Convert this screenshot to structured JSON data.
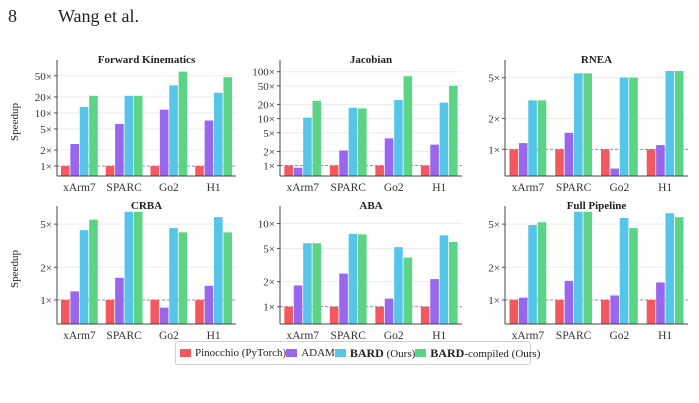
{
  "header": {
    "page_number": "8",
    "running_head": "Wang et al."
  },
  "colors": {
    "pinocchio": "#f2595f",
    "adam": "#9966ee",
    "bard": "#55c5e8",
    "bard_compiled": "#5bd585"
  },
  "legend": [
    {
      "key": "pinocchio",
      "bold": "",
      "label": "Pinocchio (PyTorch)"
    },
    {
      "key": "adam",
      "bold": "",
      "label": "ADAM"
    },
    {
      "key": "bard",
      "bold": "BARD",
      "label": " (Ours)"
    },
    {
      "key": "bard_compiled",
      "bold": "BARD",
      "label": "-compiled (Ours)"
    }
  ],
  "ylabel": "Speedup",
  "chart_data": [
    {
      "type": "bar",
      "title": "Forward Kinematics",
      "ylabel": "Speedup",
      "yscale": "log",
      "ylim": [
        0.65,
        70
      ],
      "ytick_values": [
        1,
        2,
        5,
        10,
        20,
        50
      ],
      "ytick_labels": [
        "1×",
        "2×",
        "5×",
        "10×",
        "20×",
        "50×"
      ],
      "reference_line": 1,
      "grid": true,
      "categories": [
        "xArm7",
        "SPARC",
        "Go2",
        "H1"
      ],
      "series": [
        {
          "name": "Pinocchio (PyTorch)",
          "color_key": "pinocchio",
          "values": [
            1.0,
            1.0,
            1.0,
            1.0
          ]
        },
        {
          "name": "ADAM",
          "color_key": "adam",
          "values": [
            2.6,
            6.2,
            11.5,
            7.2
          ]
        },
        {
          "name": "BARD (Ours)",
          "color_key": "bard",
          "values": [
            13,
            21,
            33,
            24
          ]
        },
        {
          "name": "BARD-compiled (Ours)",
          "color_key": "bard_compiled",
          "values": [
            21,
            21,
            60,
            47
          ]
        }
      ]
    },
    {
      "type": "bar",
      "title": "Jacobian",
      "ylabel": "",
      "yscale": "log",
      "ylim": [
        0.6,
        120
      ],
      "ytick_values": [
        1,
        2,
        5,
        10,
        20,
        50,
        100
      ],
      "ytick_labels": [
        "1×",
        "2×",
        "5×",
        "10×",
        "20×",
        "50×",
        "100×"
      ],
      "reference_line": 1,
      "grid": true,
      "categories": [
        "xArm7",
        "SPARC",
        "Go2",
        "H1"
      ],
      "series": [
        {
          "name": "Pinocchio (PyTorch)",
          "color_key": "pinocchio",
          "values": [
            1.0,
            1.0,
            1.0,
            1.0
          ]
        },
        {
          "name": "ADAM",
          "color_key": "adam",
          "values": [
            0.9,
            2.1,
            3.8,
            2.8
          ]
        },
        {
          "name": "BARD (Ours)",
          "color_key": "bard",
          "values": [
            10.5,
            17,
            25,
            22
          ]
        },
        {
          "name": "BARD-compiled (Ours)",
          "color_key": "bard_compiled",
          "values": [
            24,
            16.5,
            80,
            50
          ]
        }
      ]
    },
    {
      "type": "bar",
      "title": "RNEA",
      "ylabel": "",
      "yscale": "log",
      "ylim": [
        0.55,
        6.2
      ],
      "ytick_values": [
        1,
        2,
        5
      ],
      "ytick_labels": [
        "1×",
        "2×",
        "5×"
      ],
      "reference_line": 1,
      "grid": true,
      "categories": [
        "xArm7",
        "SPARC",
        "Go2",
        "H1"
      ],
      "series": [
        {
          "name": "Pinocchio (PyTorch)",
          "color_key": "pinocchio",
          "values": [
            1.0,
            1.0,
            1.0,
            1.0
          ]
        },
        {
          "name": "ADAM",
          "color_key": "adam",
          "values": [
            1.15,
            1.45,
            0.65,
            1.1
          ]
        },
        {
          "name": "BARD (Ours)",
          "color_key": "bard",
          "values": [
            3.0,
            5.5,
            5.0,
            5.8
          ]
        },
        {
          "name": "BARD-compiled (Ours)",
          "color_key": "bard_compiled",
          "values": [
            3.0,
            5.5,
            5.0,
            5.8
          ]
        }
      ]
    },
    {
      "type": "bar",
      "title": "CRBA",
      "ylabel": "Speedup",
      "yscale": "log",
      "ylim": [
        0.6,
        6.2
      ],
      "ytick_values": [
        1,
        2,
        5
      ],
      "ytick_labels": [
        "1×",
        "2×",
        "5×"
      ],
      "reference_line": 1,
      "grid": true,
      "categories": [
        "xArm7",
        "SPARC",
        "Go2",
        "H1"
      ],
      "series": [
        {
          "name": "Pinocchio (PyTorch)",
          "color_key": "pinocchio",
          "values": [
            1.0,
            1.0,
            1.0,
            1.0
          ]
        },
        {
          "name": "ADAM",
          "color_key": "adam",
          "values": [
            1.2,
            1.6,
            0.85,
            1.35
          ]
        },
        {
          "name": "BARD (Ours)",
          "color_key": "bard",
          "values": [
            4.4,
            6.5,
            4.6,
            5.8
          ]
        },
        {
          "name": "BARD-compiled (Ours)",
          "color_key": "bard_compiled",
          "values": [
            5.5,
            6.5,
            4.2,
            4.2
          ]
        }
      ]
    },
    {
      "type": "bar",
      "title": "ABA",
      "ylabel": "",
      "yscale": "log",
      "ylim": [
        0.62,
        13
      ],
      "ytick_values": [
        1,
        2,
        5,
        10
      ],
      "ytick_labels": [
        "1×",
        "2×",
        "5×",
        "10×"
      ],
      "reference_line": 1,
      "grid": true,
      "categories": [
        "xArm7",
        "SPARC",
        "Go2",
        "H1"
      ],
      "series": [
        {
          "name": "Pinocchio (PyTorch)",
          "color_key": "pinocchio",
          "values": [
            1.0,
            1.0,
            1.0,
            1.0
          ]
        },
        {
          "name": "ADAM",
          "color_key": "adam",
          "values": [
            1.8,
            2.5,
            1.25,
            2.15
          ]
        },
        {
          "name": "BARD (Ours)",
          "color_key": "bard",
          "values": [
            5.8,
            7.5,
            5.2,
            7.2
          ]
        },
        {
          "name": "BARD-compiled (Ours)",
          "color_key": "bard_compiled",
          "values": [
            5.8,
            7.4,
            3.9,
            6.0
          ]
        }
      ]
    },
    {
      "type": "bar",
      "title": "Full Pipeline",
      "ylabel": "",
      "yscale": "log",
      "ylim": [
        0.6,
        6.2
      ],
      "ytick_values": [
        1,
        2,
        5
      ],
      "ytick_labels": [
        "1×",
        "2×",
        "5×"
      ],
      "reference_line": 1,
      "grid": true,
      "categories": [
        "xArm7",
        "SPARC",
        "Go2",
        "H1"
      ],
      "series": [
        {
          "name": "Pinocchio (PyTorch)",
          "color_key": "pinocchio",
          "values": [
            1.0,
            1.0,
            1.0,
            1.0
          ]
        },
        {
          "name": "ADAM",
          "color_key": "adam",
          "values": [
            1.05,
            1.5,
            1.1,
            1.45
          ]
        },
        {
          "name": "BARD (Ours)",
          "color_key": "bard",
          "values": [
            4.9,
            6.5,
            5.7,
            6.3
          ]
        },
        {
          "name": "BARD-compiled (Ours)",
          "color_key": "bard_compiled",
          "values": [
            5.2,
            6.5,
            4.6,
            5.8
          ]
        }
      ]
    }
  ]
}
